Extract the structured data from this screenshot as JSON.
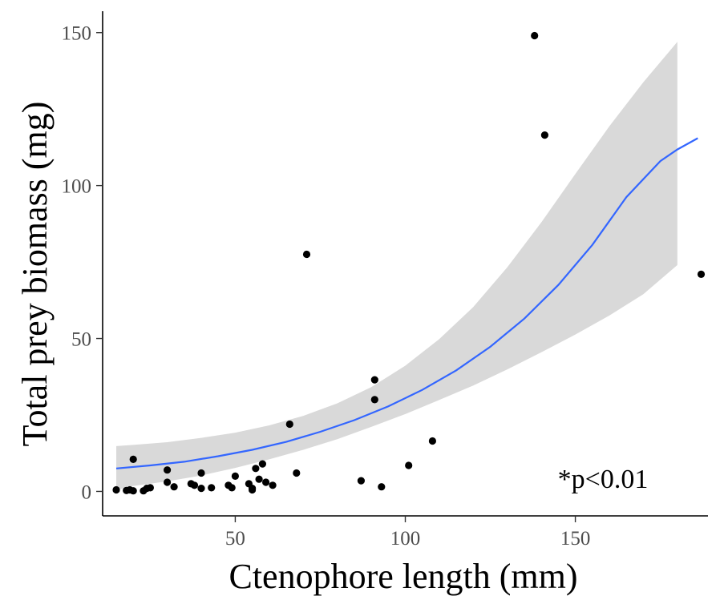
{
  "chart_data": {
    "type": "scatter",
    "title": "",
    "xlabel": "Ctenophore length (mm)",
    "ylabel": "Total prey biomass (mg)",
    "xlim": [
      11,
      189
    ],
    "ylim": [
      -8,
      157
    ],
    "x_ticks": [
      50,
      100,
      150
    ],
    "y_ticks": [
      0,
      50,
      100,
      150
    ],
    "annotation": "*p<0.01",
    "grid": false,
    "colors": {
      "points": "#000000",
      "fit_line": "#3366ff",
      "ribbon": "#d9d9d9"
    },
    "points": [
      {
        "x": 15,
        "y": 0.5
      },
      {
        "x": 18,
        "y": 0.3
      },
      {
        "x": 19,
        "y": 0.5
      },
      {
        "x": 20,
        "y": 10.5
      },
      {
        "x": 20,
        "y": 0.2
      },
      {
        "x": 23,
        "y": 0.2
      },
      {
        "x": 24,
        "y": 1
      },
      {
        "x": 25,
        "y": 1.2
      },
      {
        "x": 30,
        "y": 7
      },
      {
        "x": 30,
        "y": 3
      },
      {
        "x": 32,
        "y": 1.5
      },
      {
        "x": 37,
        "y": 2.5
      },
      {
        "x": 38,
        "y": 2
      },
      {
        "x": 40,
        "y": 1
      },
      {
        "x": 40,
        "y": 6
      },
      {
        "x": 43,
        "y": 1.2
      },
      {
        "x": 48,
        "y": 2
      },
      {
        "x": 49,
        "y": 1.2
      },
      {
        "x": 50,
        "y": 5
      },
      {
        "x": 54,
        "y": 2.5
      },
      {
        "x": 55,
        "y": 1
      },
      {
        "x": 55,
        "y": 0.5
      },
      {
        "x": 56,
        "y": 7.5
      },
      {
        "x": 57,
        "y": 4
      },
      {
        "x": 58,
        "y": 9
      },
      {
        "x": 59,
        "y": 3
      },
      {
        "x": 61,
        "y": 2
      },
      {
        "x": 66,
        "y": 22
      },
      {
        "x": 68,
        "y": 6
      },
      {
        "x": 71,
        "y": 77.5
      },
      {
        "x": 87,
        "y": 3.5
      },
      {
        "x": 91,
        "y": 36.5
      },
      {
        "x": 91,
        "y": 30
      },
      {
        "x": 93,
        "y": 1.5
      },
      {
        "x": 101,
        "y": 8.5
      },
      {
        "x": 108,
        "y": 16.5
      },
      {
        "x": 138,
        "y": 149
      },
      {
        "x": 141,
        "y": 116.5
      },
      {
        "x": 187,
        "y": 71
      }
    ],
    "fit": {
      "model": "exponential",
      "x": [
        15,
        25,
        35,
        45,
        55,
        65,
        75,
        85,
        95,
        105,
        115,
        125,
        135,
        145,
        155,
        165,
        175,
        180,
        186
      ],
      "y": [
        7.5,
        8.5,
        9.7,
        11.5,
        13.6,
        16.2,
        19.5,
        23.3,
        27.8,
        33.2,
        39.6,
        47.3,
        56.5,
        67.5,
        80.6,
        96.2,
        108,
        111.8,
        115.5
      ]
    },
    "ribbon": {
      "x": [
        15,
        20,
        30,
        40,
        50,
        60,
        70,
        80,
        90,
        100,
        110,
        120,
        130,
        140,
        150,
        160,
        170,
        180
      ],
      "lower": [
        0.5,
        1.8,
        3.3,
        5.2,
        7.7,
        10.5,
        13.6,
        17.1,
        21.1,
        25.3,
        29.9,
        34.6,
        39.9,
        45.5,
        51.3,
        57.5,
        64.5,
        74
      ],
      "upper": [
        14.8,
        15.2,
        16.1,
        17.5,
        19.2,
        21.6,
        24.7,
        28.8,
        34.1,
        41.1,
        49.8,
        60.3,
        73.3,
        88,
        103.8,
        119.4,
        133.8,
        147
      ]
    }
  }
}
